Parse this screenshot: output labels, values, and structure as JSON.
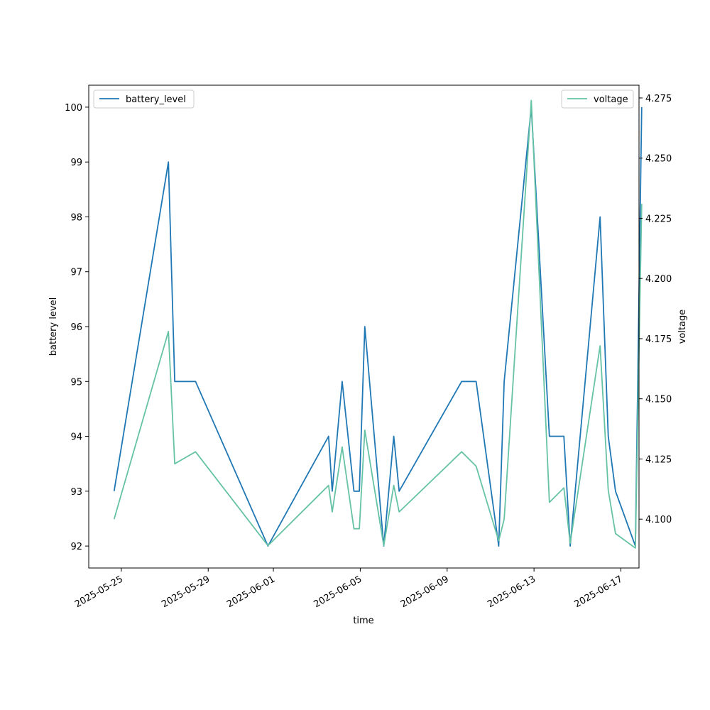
{
  "chart_data": {
    "type": "line",
    "xlabel": "time",
    "ylabel": "battery level",
    "y2label": "voltage",
    "xlim": [
      "2025-05-23 12:00",
      "2025-06-17 20:00"
    ],
    "ylim": [
      91.6,
      100.4
    ],
    "y2lim": [
      4.0797,
      4.2803
    ],
    "x_ticks": [
      "2025-05-25",
      "2025-05-29",
      "2025-06-01",
      "2025-06-05",
      "2025-06-09",
      "2025-06-13",
      "2025-06-17"
    ],
    "y_ticks": [
      92,
      93,
      94,
      95,
      96,
      97,
      98,
      99,
      100
    ],
    "y2_ticks": [
      4.1,
      4.125,
      4.15,
      4.175,
      4.2,
      4.225,
      4.25,
      4.275
    ],
    "y2_tick_labels": [
      "4.100",
      "4.125",
      "4.150",
      "4.175",
      "4.200",
      "4.225",
      "4.250",
      "4.275"
    ],
    "grid": false,
    "series": [
      {
        "name": "battery_level",
        "axis": "left",
        "color": "#1f77b4",
        "legend_position": "upper-left",
        "points": [
          [
            "2025-05-24 16:00",
            93
          ],
          [
            "2025-05-27 04:00",
            99
          ],
          [
            "2025-05-27 11:00",
            95
          ],
          [
            "2025-05-28 10:00",
            95
          ],
          [
            "2025-05-31 18:00",
            92
          ],
          [
            "2025-06-03 13:00",
            94
          ],
          [
            "2025-06-03 17:00",
            93
          ],
          [
            "2025-06-04 04:00",
            95
          ],
          [
            "2025-06-04 17:00",
            93
          ],
          [
            "2025-06-04 23:00",
            93
          ],
          [
            "2025-06-05 05:00",
            96
          ],
          [
            "2025-06-06 02:00",
            92
          ],
          [
            "2025-06-06 13:00",
            94
          ],
          [
            "2025-06-06 19:00",
            93
          ],
          [
            "2025-06-09 16:00",
            95
          ],
          [
            "2025-06-10 08:00",
            95
          ],
          [
            "2025-06-11 09:00",
            92
          ],
          [
            "2025-06-11 15:00",
            95
          ],
          [
            "2025-06-12 21:00",
            100
          ],
          [
            "2025-06-13 17:00",
            94
          ],
          [
            "2025-06-14 09:00",
            94
          ],
          [
            "2025-06-14 16:00",
            92
          ],
          [
            "2025-06-16 01:00",
            98
          ],
          [
            "2025-06-16 10:00",
            94
          ],
          [
            "2025-06-16 18:00",
            93
          ],
          [
            "2025-06-17 16:00",
            92
          ],
          [
            "2025-06-17 23:00",
            100
          ]
        ]
      },
      {
        "name": "voltage",
        "axis": "right",
        "color": "#66c2a5",
        "legend_position": "upper-right",
        "points": [
          [
            "2025-05-24 16:00",
            4.1
          ],
          [
            "2025-05-27 04:00",
            4.178
          ],
          [
            "2025-05-27 11:00",
            4.123
          ],
          [
            "2025-05-28 10:00",
            4.128
          ],
          [
            "2025-05-31 18:00",
            4.089
          ],
          [
            "2025-06-03 13:00",
            4.114
          ],
          [
            "2025-06-03 17:00",
            4.103
          ],
          [
            "2025-06-04 04:00",
            4.13
          ],
          [
            "2025-06-04 17:00",
            4.096
          ],
          [
            "2025-06-04 23:00",
            4.096
          ],
          [
            "2025-06-05 05:00",
            4.137
          ],
          [
            "2025-06-06 02:00",
            4.089
          ],
          [
            "2025-06-06 13:00",
            4.114
          ],
          [
            "2025-06-06 19:00",
            4.103
          ],
          [
            "2025-06-09 16:00",
            4.128
          ],
          [
            "2025-06-10 08:00",
            4.122
          ],
          [
            "2025-06-11 09:00",
            4.091
          ],
          [
            "2025-06-11 15:00",
            4.1
          ],
          [
            "2025-06-12 21:00",
            4.274
          ],
          [
            "2025-06-13 17:00",
            4.107
          ],
          [
            "2025-06-14 09:00",
            4.113
          ],
          [
            "2025-06-14 16:00",
            4.09
          ],
          [
            "2025-06-16 01:00",
            4.172
          ],
          [
            "2025-06-16 10:00",
            4.112
          ],
          [
            "2025-06-16 18:00",
            4.094
          ],
          [
            "2025-06-17 16:00",
            4.088
          ],
          [
            "2025-06-17 23:00",
            4.231
          ]
        ]
      }
    ]
  }
}
